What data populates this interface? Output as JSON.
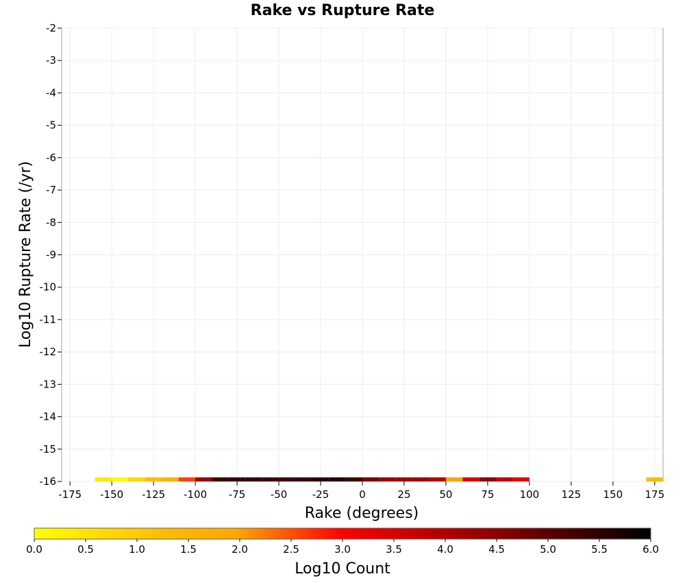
{
  "chart_data": {
    "type": "heatmap",
    "title": "Rake vs Rupture Rate",
    "xlabel": "Rake (degrees)",
    "ylabel": "Log10 Rupture Rate (/yr)",
    "xlim": [
      -180,
      180
    ],
    "ylim": [
      -16,
      -2
    ],
    "x_ticks": [
      -175,
      -150,
      -125,
      -100,
      -75,
      -50,
      -25,
      0,
      25,
      50,
      75,
      100,
      125,
      150,
      175
    ],
    "y_ticks": [
      -2,
      -3,
      -4,
      -5,
      -6,
      -7,
      -8,
      -9,
      -10,
      -11,
      -12,
      -13,
      -14,
      -15,
      -16
    ],
    "grid": true,
    "bin_width_degrees": 10,
    "bin_height_log10": 0.5,
    "colorbar": {
      "label": "Log10 Count",
      "range": [
        0,
        6
      ],
      "ticks": [
        "0.0",
        "0.5",
        "1.0",
        "1.5",
        "2.0",
        "2.5",
        "3.0",
        "3.5",
        "4.0",
        "4.5",
        "5.0",
        "5.5",
        "6.0"
      ],
      "colors": [
        "#ffff00",
        "#ffa500",
        "#ff0000",
        "#000000"
      ]
    },
    "cells": [
      {
        "rake": -155,
        "rate": -16,
        "value": 0.4
      },
      {
        "rake": -145,
        "rate": -16,
        "value": 0.1
      },
      {
        "rake": -135,
        "rate": -16,
        "value": 0.7
      },
      {
        "rake": -125,
        "rate": -16,
        "value": 1.2
      },
      {
        "rake": -115,
        "rate": -16,
        "value": 1.6
      },
      {
        "rake": -105,
        "rate": -16,
        "value": 2.6
      },
      {
        "rake": -95,
        "rate": -16,
        "value": 4.3
      },
      {
        "rake": -85,
        "rate": -16,
        "value": 5.3
      },
      {
        "rake": -75,
        "rate": -16,
        "value": 5.4
      },
      {
        "rake": -65,
        "rate": -16,
        "value": 5.4
      },
      {
        "rake": -55,
        "rate": -16,
        "value": 5.3
      },
      {
        "rake": -45,
        "rate": -16,
        "value": 5.3
      },
      {
        "rake": -35,
        "rate": -16,
        "value": 5.4
      },
      {
        "rake": -25,
        "rate": -16,
        "value": 5.5
      },
      {
        "rake": -15,
        "rate": -16,
        "value": 5.6
      },
      {
        "rake": -5,
        "rate": -16,
        "value": 5.3
      },
      {
        "rake": 5,
        "rate": -16,
        "value": 4.7
      },
      {
        "rake": 15,
        "rate": -16,
        "value": 4.3
      },
      {
        "rake": 25,
        "rate": -16,
        "value": 4.2
      },
      {
        "rake": 35,
        "rate": -16,
        "value": 4.2
      },
      {
        "rake": 45,
        "rate": -16,
        "value": 3.9
      },
      {
        "rake": 55,
        "rate": -16,
        "value": 2.0
      },
      {
        "rake": 65,
        "rate": -16,
        "value": 3.4
      },
      {
        "rake": 75,
        "rate": -16,
        "value": 4.5
      },
      {
        "rake": 85,
        "rate": -16,
        "value": 3.8
      },
      {
        "rake": 95,
        "rate": -16,
        "value": 3.3
      },
      {
        "rake": 175,
        "rate": -16,
        "value": 1.3
      }
    ]
  }
}
